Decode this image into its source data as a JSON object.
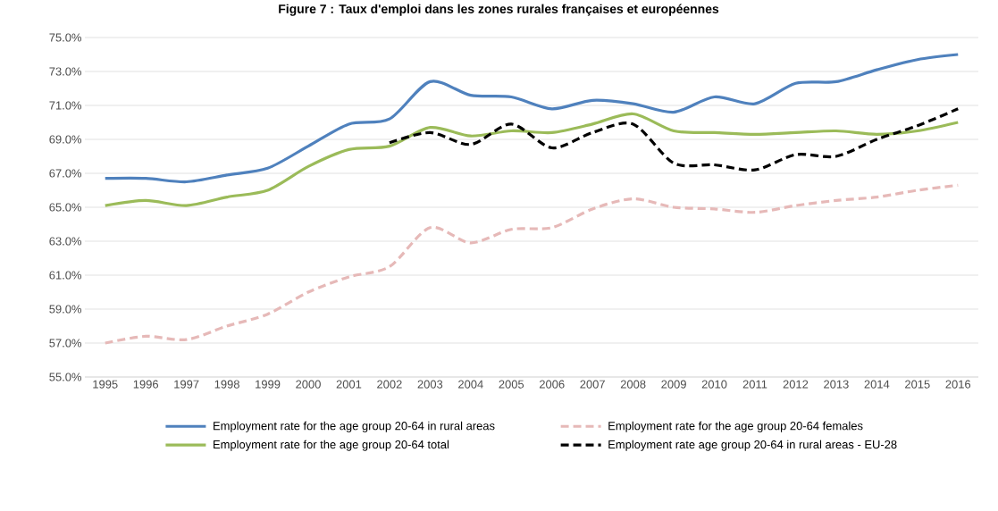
{
  "chart_data": {
    "type": "line",
    "title": "Figure 7 : Taux d'emploi dans les zones rurales françaises et européennes",
    "categories": [
      "1995",
      "1996",
      "1997",
      "1998",
      "1999",
      "2000",
      "2001",
      "2002",
      "2003",
      "2004",
      "2005",
      "2006",
      "2007",
      "2008",
      "2009",
      "2010",
      "2011",
      "2012",
      "2013",
      "2014",
      "2015",
      "2016"
    ],
    "series": [
      {
        "name": "Employment rate for the age group 20-64 in rural areas",
        "color": "#4f81bd",
        "line_style": "solid",
        "values": [
          66.7,
          66.7,
          66.5,
          66.9,
          67.3,
          68.6,
          69.9,
          70.2,
          72.4,
          71.6,
          71.5,
          70.8,
          71.3,
          71.1,
          70.6,
          71.5,
          71.1,
          72.3,
          72.4,
          73.1,
          73.7,
          74.0
        ]
      },
      {
        "name": "Employment rate for the age group 20-64 females",
        "color": "#e6b9b8",
        "line_style": "dashed",
        "values": [
          57.0,
          57.4,
          57.2,
          58.0,
          58.7,
          60.0,
          60.9,
          61.5,
          63.8,
          62.9,
          63.7,
          63.8,
          64.9,
          65.5,
          65.0,
          64.9,
          64.7,
          65.1,
          65.4,
          65.6,
          66.0,
          66.3
        ]
      },
      {
        "name": "Employment rate for the age group 20-64 total",
        "color": "#9bbb59",
        "line_style": "solid",
        "values": [
          65.1,
          65.4,
          65.1,
          65.6,
          66.0,
          67.4,
          68.4,
          68.6,
          69.7,
          69.2,
          69.5,
          69.4,
          69.9,
          70.5,
          69.5,
          69.4,
          69.3,
          69.4,
          69.5,
          69.3,
          69.5,
          70.0
        ]
      },
      {
        "name": "Employment rate age group 20-64 in rural areas - EU-28",
        "color": "#000000",
        "line_style": "dashed",
        "values": [
          null,
          null,
          null,
          null,
          null,
          null,
          null,
          68.8,
          69.4,
          68.7,
          69.9,
          68.5,
          69.4,
          69.9,
          67.6,
          67.5,
          67.2,
          68.1,
          68.0,
          69.0,
          69.8,
          70.8
        ]
      }
    ],
    "ylim": [
      55,
      75
    ],
    "yticks": [
      {
        "value": 55,
        "label": "55.0%"
      },
      {
        "value": 57,
        "label": "57.0%"
      },
      {
        "value": 59,
        "label": "59.0%"
      },
      {
        "value": 61,
        "label": "61.0%"
      },
      {
        "value": 63,
        "label": "63.0%"
      },
      {
        "value": 65,
        "label": "65.0%"
      },
      {
        "value": 67,
        "label": "67.0%"
      },
      {
        "value": 69,
        "label": "69.0%"
      },
      {
        "value": 71,
        "label": "71.0%"
      },
      {
        "value": 73,
        "label": "73.0%"
      },
      {
        "value": 75,
        "label": "75.0%"
      }
    ],
    "grid": "y",
    "legend": "bottom",
    "marker": "none"
  }
}
